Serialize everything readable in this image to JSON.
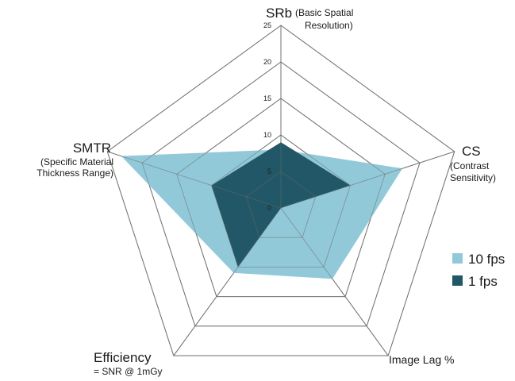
{
  "chart_data": {
    "type": "radar",
    "axes": [
      {
        "title": "SRb",
        "subtitle_lines": [
          "(Basic Spatial",
          "Resolution)"
        ]
      },
      {
        "title": "CS",
        "subtitle_lines": [
          "(Contrast",
          "Sensitivity)"
        ]
      },
      {
        "title": "",
        "subtitle_lines": [
          "Image Lag %"
        ]
      },
      {
        "title": "Efficiency",
        "subtitle_lines": [
          "= SNR @ 1mGy"
        ]
      },
      {
        "title": "SMTR",
        "subtitle_lines": [
          "(Specific Material",
          "Thickness Range)"
        ]
      }
    ],
    "rlim": [
      0,
      25
    ],
    "ticks": [
      "0",
      "5",
      "10",
      "15",
      "20",
      "25"
    ],
    "series": [
      {
        "name": "10 fps",
        "color": "#92c9d9",
        "values": [
          8,
          17.5,
          12,
          11,
          23
        ]
      },
      {
        "name": "1 fps",
        "color": "#215766",
        "values": [
          9,
          10,
          0,
          10,
          10
        ]
      }
    ],
    "legend_position": "right",
    "grid": true
  }
}
